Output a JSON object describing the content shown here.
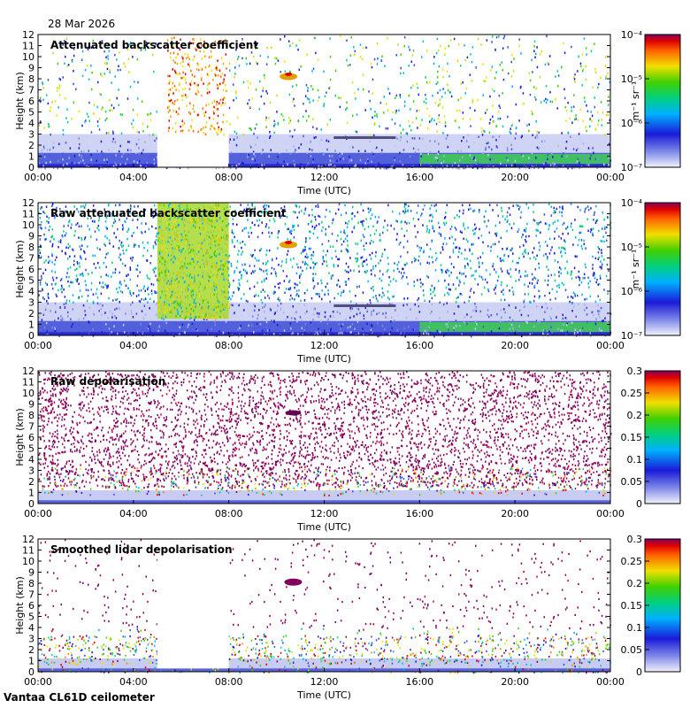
{
  "date": "28 Mar 2026",
  "footer": "Vantaa CL61D ceilometer",
  "chart_data": [
    {
      "type": "heatmap",
      "title": "Attenuated backscatter coefficient",
      "xlabel": "Time (UTC)",
      "ylabel": "Height (km)",
      "xticks": [
        "00:00",
        "04:00",
        "08:00",
        "12:00",
        "16:00",
        "20:00",
        "00:00"
      ],
      "yticks": [
        "0",
        "1",
        "2",
        "3",
        "4",
        "5",
        "6",
        "7",
        "8",
        "9",
        "10",
        "11",
        "12"
      ],
      "ylim": [
        0,
        12
      ],
      "colorbar": {
        "scale": "log",
        "ticks": [
          "10⁻⁷",
          "10⁻⁶",
          "10⁻⁵",
          "10⁻⁴"
        ],
        "unit": "m⁻¹ sr⁻¹"
      }
    },
    {
      "type": "heatmap",
      "title": "Raw attenuated backscatter coefficient",
      "xlabel": "Time (UTC)",
      "ylabel": "Height (km)",
      "xticks": [
        "00:00",
        "04:00",
        "08:00",
        "12:00",
        "16:00",
        "20:00",
        "00:00"
      ],
      "yticks": [
        "0",
        "1",
        "2",
        "3",
        "4",
        "5",
        "6",
        "7",
        "8",
        "9",
        "10",
        "11",
        "12"
      ],
      "ylim": [
        0,
        12
      ],
      "colorbar": {
        "scale": "log",
        "ticks": [
          "10⁻⁷",
          "10⁻⁶",
          "10⁻⁵",
          "10⁻⁴"
        ],
        "unit": "m⁻¹ sr⁻¹"
      }
    },
    {
      "type": "heatmap",
      "title": "Raw depolarisation",
      "xlabel": "Time (UTC)",
      "ylabel": "Height (km)",
      "xticks": [
        "00:00",
        "04:00",
        "08:00",
        "12:00",
        "16:00",
        "20:00",
        "00:00"
      ],
      "yticks": [
        "0",
        "1",
        "2",
        "3",
        "4",
        "5",
        "6",
        "7",
        "8",
        "9",
        "10",
        "11",
        "12"
      ],
      "ylim": [
        0,
        12
      ],
      "colorbar": {
        "scale": "linear",
        "ticks": [
          "0",
          "0.05",
          "0.1",
          "0.15",
          "0.2",
          "0.25",
          "0.3"
        ],
        "unit": ""
      }
    },
    {
      "type": "heatmap",
      "title": "Smoothed lidar depolarisation",
      "xlabel": "Time (UTC)",
      "ylabel": "Height (km)",
      "xticks": [
        "00:00",
        "04:00",
        "08:00",
        "12:00",
        "16:00",
        "20:00",
        "00:00"
      ],
      "yticks": [
        "0",
        "1",
        "2",
        "3",
        "4",
        "5",
        "6",
        "7",
        "8",
        "9",
        "10",
        "11",
        "12"
      ],
      "ylim": [
        0,
        12
      ],
      "colorbar": {
        "scale": "linear",
        "ticks": [
          "0",
          "0.05",
          "0.1",
          "0.15",
          "0.2",
          "0.25",
          "0.3"
        ],
        "unit": ""
      }
    }
  ]
}
